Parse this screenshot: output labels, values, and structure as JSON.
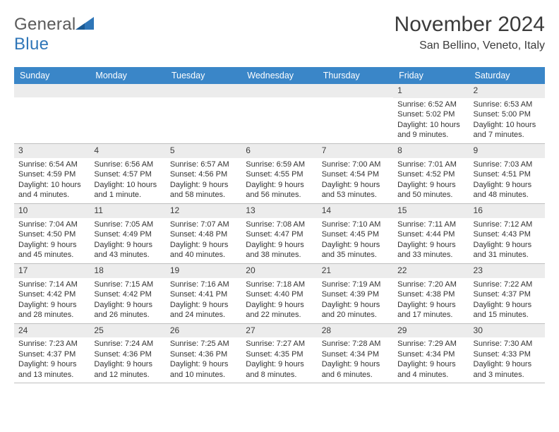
{
  "logo": {
    "text_general": "General",
    "text_blue": "Blue"
  },
  "title": {
    "month": "November 2024",
    "location": "San Bellino, Veneto, Italy"
  },
  "colors": {
    "header_bg": "#3a86c8",
    "header_text": "#ffffff",
    "daynum_bg": "#ececec",
    "border": "#bfbfbf",
    "text": "#333333",
    "logo_gray": "#5a5a5a",
    "logo_blue": "#2f76b8"
  },
  "day_headers": [
    "Sunday",
    "Monday",
    "Tuesday",
    "Wednesday",
    "Thursday",
    "Friday",
    "Saturday"
  ],
  "weeks": [
    [
      {
        "n": "",
        "sunrise": "",
        "sunset": "",
        "daylight": ""
      },
      {
        "n": "",
        "sunrise": "",
        "sunset": "",
        "daylight": ""
      },
      {
        "n": "",
        "sunrise": "",
        "sunset": "",
        "daylight": ""
      },
      {
        "n": "",
        "sunrise": "",
        "sunset": "",
        "daylight": ""
      },
      {
        "n": "",
        "sunrise": "",
        "sunset": "",
        "daylight": ""
      },
      {
        "n": "1",
        "sunrise": "Sunrise: 6:52 AM",
        "sunset": "Sunset: 5:02 PM",
        "daylight": "Daylight: 10 hours and 9 minutes."
      },
      {
        "n": "2",
        "sunrise": "Sunrise: 6:53 AM",
        "sunset": "Sunset: 5:00 PM",
        "daylight": "Daylight: 10 hours and 7 minutes."
      }
    ],
    [
      {
        "n": "3",
        "sunrise": "Sunrise: 6:54 AM",
        "sunset": "Sunset: 4:59 PM",
        "daylight": "Daylight: 10 hours and 4 minutes."
      },
      {
        "n": "4",
        "sunrise": "Sunrise: 6:56 AM",
        "sunset": "Sunset: 4:57 PM",
        "daylight": "Daylight: 10 hours and 1 minute."
      },
      {
        "n": "5",
        "sunrise": "Sunrise: 6:57 AM",
        "sunset": "Sunset: 4:56 PM",
        "daylight": "Daylight: 9 hours and 58 minutes."
      },
      {
        "n": "6",
        "sunrise": "Sunrise: 6:59 AM",
        "sunset": "Sunset: 4:55 PM",
        "daylight": "Daylight: 9 hours and 56 minutes."
      },
      {
        "n": "7",
        "sunrise": "Sunrise: 7:00 AM",
        "sunset": "Sunset: 4:54 PM",
        "daylight": "Daylight: 9 hours and 53 minutes."
      },
      {
        "n": "8",
        "sunrise": "Sunrise: 7:01 AM",
        "sunset": "Sunset: 4:52 PM",
        "daylight": "Daylight: 9 hours and 50 minutes."
      },
      {
        "n": "9",
        "sunrise": "Sunrise: 7:03 AM",
        "sunset": "Sunset: 4:51 PM",
        "daylight": "Daylight: 9 hours and 48 minutes."
      }
    ],
    [
      {
        "n": "10",
        "sunrise": "Sunrise: 7:04 AM",
        "sunset": "Sunset: 4:50 PM",
        "daylight": "Daylight: 9 hours and 45 minutes."
      },
      {
        "n": "11",
        "sunrise": "Sunrise: 7:05 AM",
        "sunset": "Sunset: 4:49 PM",
        "daylight": "Daylight: 9 hours and 43 minutes."
      },
      {
        "n": "12",
        "sunrise": "Sunrise: 7:07 AM",
        "sunset": "Sunset: 4:48 PM",
        "daylight": "Daylight: 9 hours and 40 minutes."
      },
      {
        "n": "13",
        "sunrise": "Sunrise: 7:08 AM",
        "sunset": "Sunset: 4:47 PM",
        "daylight": "Daylight: 9 hours and 38 minutes."
      },
      {
        "n": "14",
        "sunrise": "Sunrise: 7:10 AM",
        "sunset": "Sunset: 4:45 PM",
        "daylight": "Daylight: 9 hours and 35 minutes."
      },
      {
        "n": "15",
        "sunrise": "Sunrise: 7:11 AM",
        "sunset": "Sunset: 4:44 PM",
        "daylight": "Daylight: 9 hours and 33 minutes."
      },
      {
        "n": "16",
        "sunrise": "Sunrise: 7:12 AM",
        "sunset": "Sunset: 4:43 PM",
        "daylight": "Daylight: 9 hours and 31 minutes."
      }
    ],
    [
      {
        "n": "17",
        "sunrise": "Sunrise: 7:14 AM",
        "sunset": "Sunset: 4:42 PM",
        "daylight": "Daylight: 9 hours and 28 minutes."
      },
      {
        "n": "18",
        "sunrise": "Sunrise: 7:15 AM",
        "sunset": "Sunset: 4:42 PM",
        "daylight": "Daylight: 9 hours and 26 minutes."
      },
      {
        "n": "19",
        "sunrise": "Sunrise: 7:16 AM",
        "sunset": "Sunset: 4:41 PM",
        "daylight": "Daylight: 9 hours and 24 minutes."
      },
      {
        "n": "20",
        "sunrise": "Sunrise: 7:18 AM",
        "sunset": "Sunset: 4:40 PM",
        "daylight": "Daylight: 9 hours and 22 minutes."
      },
      {
        "n": "21",
        "sunrise": "Sunrise: 7:19 AM",
        "sunset": "Sunset: 4:39 PM",
        "daylight": "Daylight: 9 hours and 20 minutes."
      },
      {
        "n": "22",
        "sunrise": "Sunrise: 7:20 AM",
        "sunset": "Sunset: 4:38 PM",
        "daylight": "Daylight: 9 hours and 17 minutes."
      },
      {
        "n": "23",
        "sunrise": "Sunrise: 7:22 AM",
        "sunset": "Sunset: 4:37 PM",
        "daylight": "Daylight: 9 hours and 15 minutes."
      }
    ],
    [
      {
        "n": "24",
        "sunrise": "Sunrise: 7:23 AM",
        "sunset": "Sunset: 4:37 PM",
        "daylight": "Daylight: 9 hours and 13 minutes."
      },
      {
        "n": "25",
        "sunrise": "Sunrise: 7:24 AM",
        "sunset": "Sunset: 4:36 PM",
        "daylight": "Daylight: 9 hours and 12 minutes."
      },
      {
        "n": "26",
        "sunrise": "Sunrise: 7:25 AM",
        "sunset": "Sunset: 4:36 PM",
        "daylight": "Daylight: 9 hours and 10 minutes."
      },
      {
        "n": "27",
        "sunrise": "Sunrise: 7:27 AM",
        "sunset": "Sunset: 4:35 PM",
        "daylight": "Daylight: 9 hours and 8 minutes."
      },
      {
        "n": "28",
        "sunrise": "Sunrise: 7:28 AM",
        "sunset": "Sunset: 4:34 PM",
        "daylight": "Daylight: 9 hours and 6 minutes."
      },
      {
        "n": "29",
        "sunrise": "Sunrise: 7:29 AM",
        "sunset": "Sunset: 4:34 PM",
        "daylight": "Daylight: 9 hours and 4 minutes."
      },
      {
        "n": "30",
        "sunrise": "Sunrise: 7:30 AM",
        "sunset": "Sunset: 4:33 PM",
        "daylight": "Daylight: 9 hours and 3 minutes."
      }
    ]
  ]
}
